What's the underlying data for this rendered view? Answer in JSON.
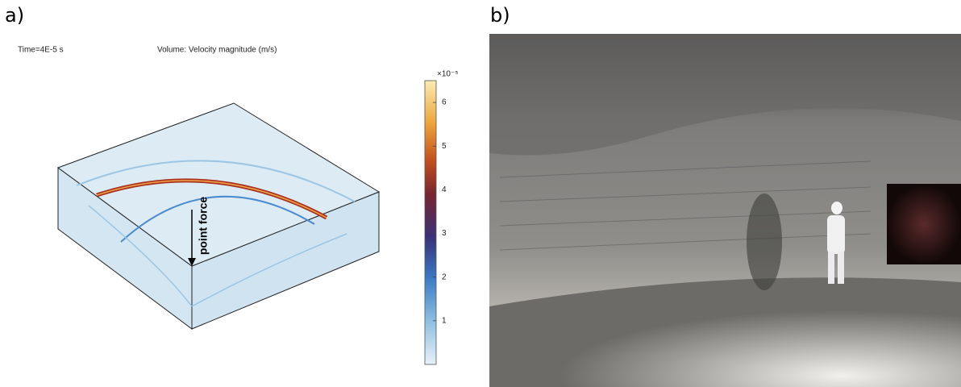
{
  "panels": [
    {
      "label": "a)",
      "time": "Time=4E-5 s",
      "title": "Volume: Velocity magnitude (m/s)",
      "annotation": "point force",
      "colorbar": {
        "multiplier": "×10⁻⁵",
        "range": [
          0,
          6.5
        ],
        "ticks": [
          1,
          2,
          3,
          4,
          5,
          6
        ]
      }
    },
    {
      "label": "b)"
    }
  ]
}
